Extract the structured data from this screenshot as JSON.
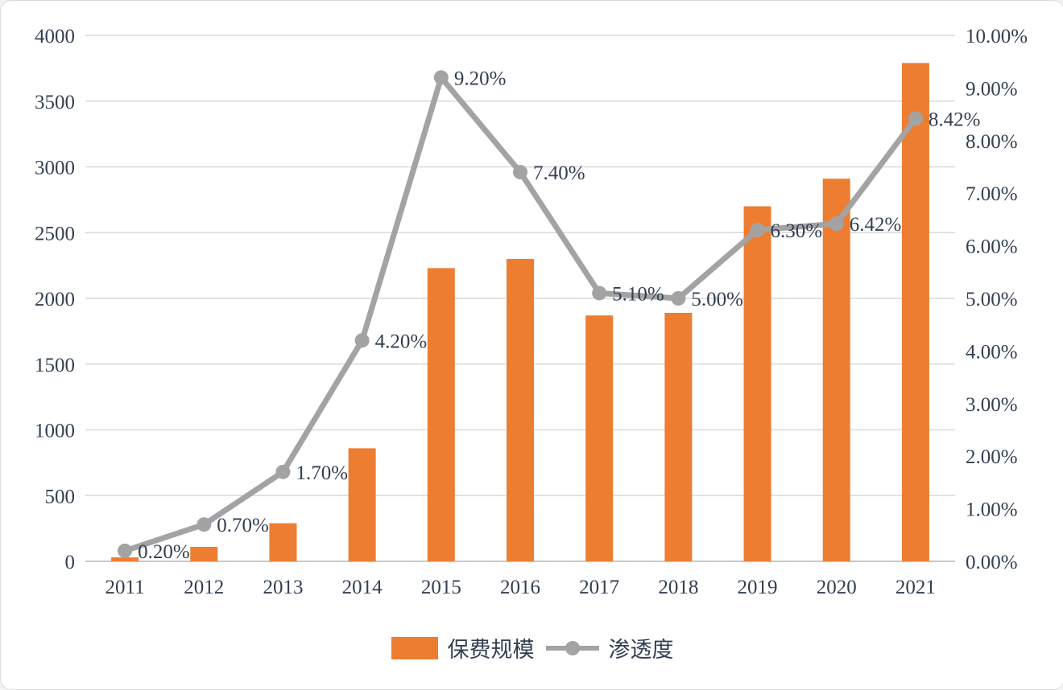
{
  "chart_data": {
    "type": "bar",
    "subtype": "combo-bar-line",
    "categories": [
      "2011",
      "2012",
      "2013",
      "2014",
      "2015",
      "2016",
      "2017",
      "2018",
      "2019",
      "2020",
      "2021"
    ],
    "series": [
      {
        "name": "保费规模",
        "type": "bar",
        "axis": "left",
        "color": "#ED7D31",
        "values": [
          30,
          110,
          290,
          860,
          2230,
          2300,
          1870,
          1890,
          2700,
          2910,
          3790
        ]
      },
      {
        "name": "渗透度",
        "type": "line",
        "axis": "right",
        "color": "#A3A3A3",
        "values": [
          0.2,
          0.7,
          1.7,
          4.2,
          9.2,
          7.4,
          5.1,
          5.0,
          6.3,
          6.42,
          8.42
        ],
        "labels": [
          "0.20%",
          "0.70%",
          "1.70%",
          "4.20%",
          "9.20%",
          "7.40%",
          "5.10%",
          "5.00%",
          "6.30%",
          "6.42%",
          "8.42%"
        ]
      }
    ],
    "left_axis": {
      "min": 0,
      "max": 4000,
      "step": 500,
      "ticks": [
        "0",
        "500",
        "1000",
        "1500",
        "2000",
        "2500",
        "3000",
        "3500",
        "4000"
      ]
    },
    "right_axis": {
      "min": 0,
      "max": 10,
      "step": 1,
      "ticks": [
        "0.00%",
        "1.00%",
        "2.00%",
        "3.00%",
        "4.00%",
        "5.00%",
        "6.00%",
        "7.00%",
        "8.00%",
        "9.00%",
        "10.00%"
      ]
    },
    "grid": true,
    "legend_position": "bottom",
    "title": "",
    "xlabel": "",
    "ylabel_left": "",
    "ylabel_right": ""
  },
  "colors": {
    "bar": "#ED7D31",
    "line": "#A3A3A3",
    "marker": "#A3A3A3",
    "text": "#333F50",
    "gridline": "#DADADA",
    "axis_line": "#C9C9C9",
    "background": "#FFFFFF"
  }
}
